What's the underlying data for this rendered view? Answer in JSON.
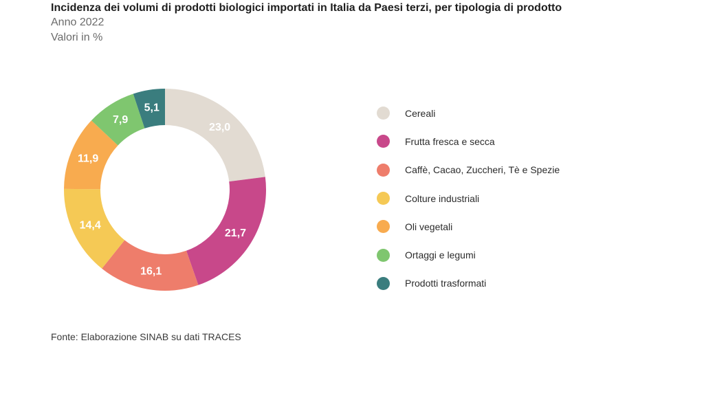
{
  "header": {
    "title": "Incidenza dei volumi di prodotti biologici importati in Italia da Paesi terzi, per tipologia di prodotto",
    "subtitle": "Anno 2022",
    "units": "Valori in %"
  },
  "source": "Fonte: Elaborazione SINAB su dati TRACES",
  "chart_data": {
    "type": "pie",
    "variant": "donut",
    "legend_position": "right",
    "categories": [
      "Cereali",
      "Frutta fresca e secca",
      "Caffè, Cacao, Zuccheri, Tè e Spezie",
      "Colture industriali",
      "Oli vegetali",
      "Ortaggi e legumi",
      "Prodotti trasformati"
    ],
    "values": [
      23.0,
      21.7,
      16.1,
      14.4,
      11.9,
      7.9,
      5.1
    ],
    "value_labels": [
      "23,0",
      "21,7",
      "16,1",
      "14,4",
      "11,9",
      "7,9",
      "5,1"
    ],
    "colors": [
      "#e2dbd2",
      "#c8488a",
      "#ee7d6b",
      "#f5c955",
      "#f8ab4f",
      "#7fc66f",
      "#3a7d7e"
    ]
  }
}
